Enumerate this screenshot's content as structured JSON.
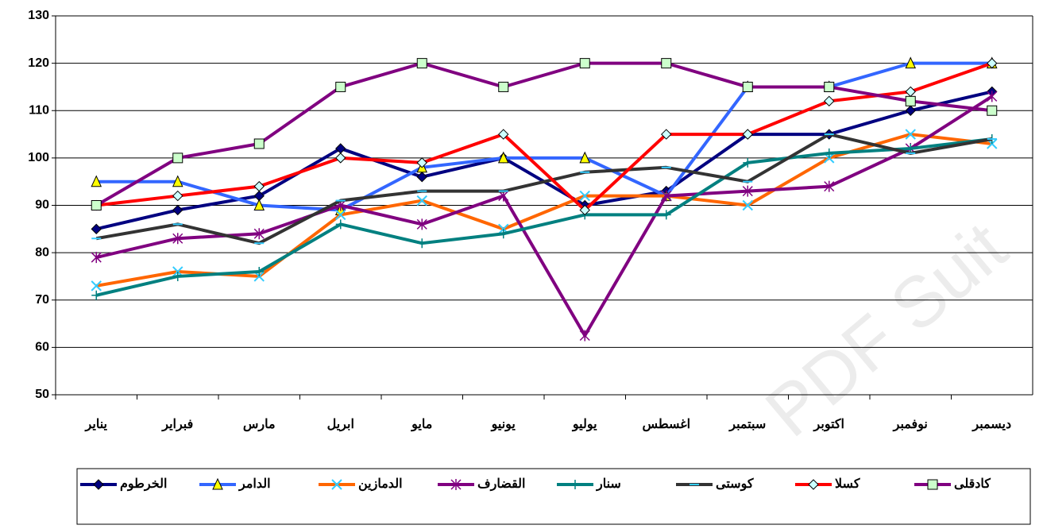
{
  "chart_data": {
    "type": "line",
    "categories": [
      "يناير",
      "فبراير",
      "مارس",
      "ابريل",
      "مايو",
      "يونيو",
      "يوليو",
      "اغسطس",
      "سبتمبر",
      "اكتوبر",
      "نوفمبر",
      "ديسمبر"
    ],
    "ylim": [
      50,
      130
    ],
    "yticks": [
      50,
      60,
      70,
      80,
      90,
      100,
      110,
      120,
      130
    ],
    "grid": true,
    "legend": "bottom",
    "watermark": "PDF Suit",
    "series": [
      {
        "name": "الخرطوم",
        "color": "#000080",
        "marker": "diamond",
        "marker_color": "#000080",
        "values": [
          85,
          89,
          92,
          102,
          96,
          100,
          90,
          93,
          105,
          105,
          110,
          114
        ]
      },
      {
        "name": "الدامر",
        "color": "#3366ff",
        "marker": "triangle",
        "marker_color": "#ffff00",
        "values": [
          95,
          95,
          90,
          89,
          98,
          100,
          100,
          92,
          115,
          115,
          120,
          120
        ]
      },
      {
        "name": "الدمازين",
        "color": "#ff6600",
        "marker": "x",
        "marker_color": "#33ccff",
        "values": [
          73,
          76,
          75,
          88,
          91,
          85,
          92,
          92,
          90,
          100,
          105,
          103
        ]
      },
      {
        "name": "القضارف",
        "color": "#800080",
        "marker": "asterisk",
        "marker_color": "#800080",
        "values": [
          79,
          83,
          84,
          90,
          86,
          92,
          62.5,
          92,
          93,
          94,
          102,
          113
        ]
      },
      {
        "name": "سنار",
        "color": "#008080",
        "marker": "plus",
        "marker_color": "#008080",
        "values": [
          71,
          75,
          76,
          86,
          82,
          84,
          88,
          88,
          99,
          101,
          102,
          104
        ]
      },
      {
        "name": "كوستى",
        "color": "#333333",
        "marker": "dash",
        "marker_color": "#33ccff",
        "values": [
          83,
          86,
          82,
          91,
          93,
          93,
          97,
          98,
          95,
          105,
          101,
          104
        ]
      },
      {
        "name": "كسلا",
        "color": "#ff0000",
        "marker": "diamond",
        "marker_color": "#ccffff",
        "values": [
          90,
          92,
          94,
          100,
          99,
          105,
          89,
          105,
          105,
          112,
          114,
          120
        ]
      },
      {
        "name": "كادقلى",
        "color": "#800080",
        "marker": "square",
        "marker_color": "#ccffcc",
        "values": [
          90,
          100,
          103,
          115,
          120,
          115,
          120,
          120,
          115,
          115,
          112,
          110
        ]
      }
    ]
  }
}
